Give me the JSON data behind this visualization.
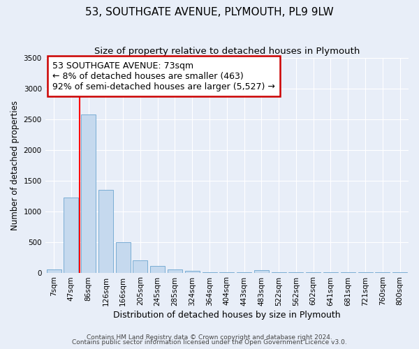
{
  "title": "53, SOUTHGATE AVENUE, PLYMOUTH, PL9 9LW",
  "subtitle": "Size of property relative to detached houses in Plymouth",
  "bar_labels": [
    "7sqm",
    "47sqm",
    "86sqm",
    "126sqm",
    "166sqm",
    "205sqm",
    "245sqm",
    "285sqm",
    "324sqm",
    "364sqm",
    "404sqm",
    "443sqm",
    "483sqm",
    "522sqm",
    "562sqm",
    "602sqm",
    "641sqm",
    "681sqm",
    "721sqm",
    "760sqm",
    "800sqm"
  ],
  "bar_values": [
    50,
    1230,
    2580,
    1350,
    500,
    200,
    110,
    50,
    30,
    5,
    5,
    5,
    40,
    5,
    5,
    5,
    5,
    5,
    5,
    5,
    5
  ],
  "bar_color": "#c5d9ee",
  "bar_edge_color": "#7aadd4",
  "xlabel": "Distribution of detached houses by size in Plymouth",
  "ylabel": "Number of detached properties",
  "ylim": [
    0,
    3500
  ],
  "yticks": [
    0,
    500,
    1000,
    1500,
    2000,
    2500,
    3000,
    3500
  ],
  "red_line_x": 1.5,
  "annotation_title": "53 SOUTHGATE AVENUE: 73sqm",
  "annotation_line1": "← 8% of detached houses are smaller (463)",
  "annotation_line2": "92% of semi-detached houses are larger (5,527) →",
  "annotation_box_facecolor": "#ffffff",
  "annotation_box_edgecolor": "#cc0000",
  "footer1": "Contains HM Land Registry data © Crown copyright and database right 2024.",
  "footer2": "Contains public sector information licensed under the Open Government Licence v3.0.",
  "background_color": "#e8eef8",
  "grid_color": "#ffffff",
  "title_fontsize": 11,
  "subtitle_fontsize": 9.5,
  "xlabel_fontsize": 9,
  "ylabel_fontsize": 8.5,
  "tick_fontsize": 7.5,
  "annotation_fontsize": 9,
  "footer_fontsize": 6.5
}
